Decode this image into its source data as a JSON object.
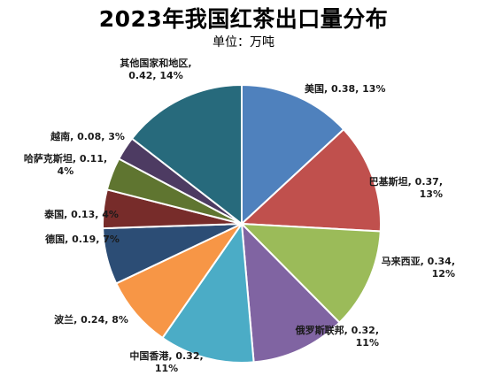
{
  "chart_data": {
    "type": "pie",
    "title": "2023年我国红茶出口量分布",
    "subtitle": "单位：万吨",
    "slices": [
      {
        "name": "美国",
        "value": 0.38,
        "percent": "13%",
        "color": "#4F81BD",
        "label_lines": [
          "美国, 0.38, 13%"
        ]
      },
      {
        "name": "巴基斯坦",
        "value": 0.37,
        "percent": "13%",
        "color": "#C0504D",
        "label_lines": [
          "巴基斯坦, 0.37,",
          "13%"
        ]
      },
      {
        "name": "马来西亚",
        "value": 0.34,
        "percent": "12%",
        "color": "#9BBB59",
        "label_lines": [
          "马来西亚, 0.34,",
          "12%"
        ]
      },
      {
        "name": "俄罗斯联邦",
        "value": 0.32,
        "percent": "11%",
        "color": "#8064A2",
        "label_lines": [
          "俄罗斯联邦, 0.32,",
          "11%"
        ]
      },
      {
        "name": "中国香港",
        "value": 0.32,
        "percent": "11%",
        "color": "#4BACC6",
        "label_lines": [
          "中国香港, 0.32,",
          "11%"
        ]
      },
      {
        "name": "波兰",
        "value": 0.24,
        "percent": "8%",
        "color": "#F79646",
        "label_lines": [
          "波兰, 0.24, 8%"
        ]
      },
      {
        "name": "德国",
        "value": 0.19,
        "percent": "7%",
        "color": "#2C4D75",
        "label_lines": [
          "德国, 0.19, 7%"
        ]
      },
      {
        "name": "泰国",
        "value": 0.13,
        "percent": "4%",
        "color": "#772C2A",
        "label_lines": [
          "泰国, 0.13, 4%"
        ]
      },
      {
        "name": "哈萨克斯坦",
        "value": 0.11,
        "percent": "4%",
        "color": "#5F7530",
        "label_lines": [
          "哈萨克斯坦, 0.11,",
          "4%"
        ]
      },
      {
        "name": "越南",
        "value": 0.08,
        "percent": "3%",
        "color": "#4D3B62",
        "label_lines": [
          "越南, 0.08, 3%"
        ]
      },
      {
        "name": "其他国家和地区",
        "value": 0.42,
        "percent": "14%",
        "color": "#276A7C",
        "label_lines": [
          "其他国家和地区,",
          "0.42, 14%"
        ]
      }
    ]
  }
}
